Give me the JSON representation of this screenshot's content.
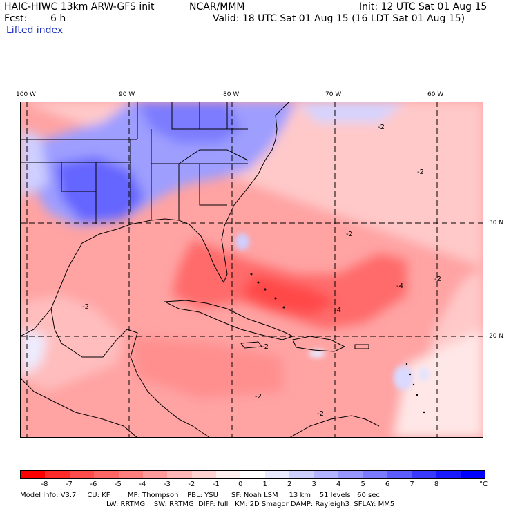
{
  "header": {
    "model_title": "HAIC-HIWC 13km ARW-GFS init",
    "center": "NCAR/MMM",
    "init": "Init: 12 UTC Sat 01 Aug 15",
    "fcst_label": "Fcst:",
    "fcst_value": "6 h",
    "valid": "Valid: 18 UTC Sat 01 Aug 15 (16 LDT Sat 01 Aug 15)",
    "field": "Lifted index"
  },
  "map": {
    "lon_labels": [
      "100 W",
      "90 W",
      "80 W",
      "70 W",
      "60 W"
    ],
    "lat_labels": [
      "30 N",
      "20 N"
    ],
    "contour_labels": [
      "-2",
      "-2",
      "-2",
      "-2",
      "-4",
      "-4",
      "-2",
      "-2",
      "-2",
      "-2"
    ]
  },
  "colorbar": {
    "unit": "°C",
    "labels": [
      "-8",
      "-7",
      "-6",
      "-5",
      "-4",
      "-3",
      "-2",
      "-1",
      "0",
      "1",
      "2",
      "3",
      "4",
      "5",
      "6",
      "7",
      "8"
    ],
    "colors": [
      "#ff0000",
      "#ff2a2a",
      "#ff4b4b",
      "#ff6565",
      "#ff7f7f",
      "#ff9a9a",
      "#ffb6b6",
      "#ffd1d1",
      "#ffeeee",
      "#ffffff",
      "#e9e9ff",
      "#cfcfff",
      "#b3b3ff",
      "#9797ff",
      "#7b7bff",
      "#5c5cff",
      "#3a3aff",
      "#1a1aff",
      "#0000ff"
    ]
  },
  "footer": {
    "line1": "Model Info: V3.7     CU: KF        MP: Thompson    PBL: YSU      SF: Noah LSM     13 km    51 levels   60 sec",
    "line2": "LW: RRTMG    SW: RRTMG  DIFF: full   KM: 2D Smagor DAMP: Rayleigh3  SFLAY: MM5"
  }
}
